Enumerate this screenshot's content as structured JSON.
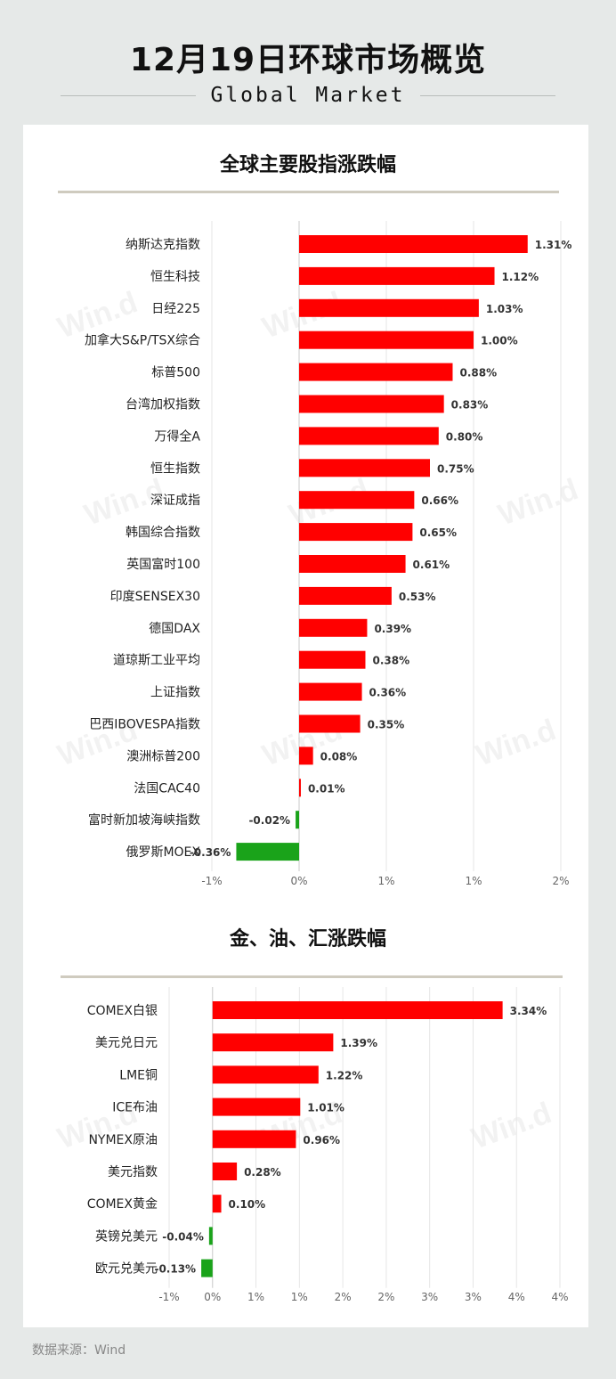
{
  "header": {
    "title": "12月19日环球市场概览",
    "subtitle": "Global Market"
  },
  "footer": {
    "source": "数据来源：Wind"
  },
  "watermark": "Win.d",
  "colors": {
    "positive": "#ff0000",
    "negative": "#1aa31a",
    "grid": "#e6e6e6",
    "axis": "#c9c9c9"
  },
  "chart_data": [
    {
      "type": "bar",
      "orientation": "horizontal",
      "title": "全球主要股指涨跌幅",
      "categories": [
        "纳斯达克指数",
        "恒生科技",
        "日经225",
        "加拿大S&P/TSX综合",
        "标普500",
        "台湾加权指数",
        "万得全A",
        "恒生指数",
        "深证成指",
        "韩国综合指数",
        "英国富时100",
        "印度SENSEX30",
        "德国DAX",
        "道琼斯工业平均",
        "上证指数",
        "巴西IBOVESPA指数",
        "澳洲标普200",
        "法国CAC40",
        "富时新加坡海峡指数",
        "俄罗斯MOEX"
      ],
      "values": [
        1.31,
        1.12,
        1.03,
        1.0,
        0.88,
        0.83,
        0.8,
        0.75,
        0.66,
        0.65,
        0.61,
        0.53,
        0.39,
        0.38,
        0.36,
        0.35,
        0.08,
        0.01,
        -0.02,
        -0.36
      ],
      "value_labels": [
        "1.31%",
        "1.12%",
        "1.03%",
        "1.00%",
        "0.88%",
        "0.83%",
        "0.80%",
        "0.75%",
        "0.66%",
        "0.65%",
        "0.61%",
        "0.53%",
        "0.39%",
        "0.38%",
        "0.36%",
        "0.35%",
        "0.08%",
        "0.01%",
        "-0.02%",
        "-0.36%"
      ],
      "xlim": [
        -0.5,
        1.5
      ],
      "ticks": [
        -0.5,
        0,
        0.5,
        1.0,
        1.5
      ],
      "tick_labels": [
        "-1%",
        "0%",
        "1%",
        "1%",
        "2%"
      ],
      "grid": true,
      "legend": "none"
    },
    {
      "type": "bar",
      "orientation": "horizontal",
      "title": "金、油、汇涨跌幅",
      "categories": [
        "COMEX白银",
        "美元兑日元",
        "LME铜",
        "ICE布油",
        "NYMEX原油",
        "美元指数",
        "COMEX黄金",
        "英镑兑美元",
        "欧元兑美元"
      ],
      "values": [
        3.34,
        1.39,
        1.22,
        1.01,
        0.96,
        0.28,
        0.1,
        -0.04,
        -0.13
      ],
      "value_labels": [
        "3.34%",
        "1.39%",
        "1.22%",
        "1.01%",
        "0.96%",
        "0.28%",
        "0.10%",
        "-0.04%",
        "-0.13%"
      ],
      "xlim": [
        -0.5,
        4.0
      ],
      "ticks": [
        -0.5,
        0,
        0.5,
        1.0,
        1.5,
        2.0,
        2.5,
        3.0,
        3.5,
        4.0
      ],
      "tick_labels": [
        "-1%",
        "0%",
        "1%",
        "1%",
        "2%",
        "2%",
        "3%",
        "3%",
        "4%",
        "4%"
      ],
      "grid": true,
      "legend": "none"
    }
  ]
}
